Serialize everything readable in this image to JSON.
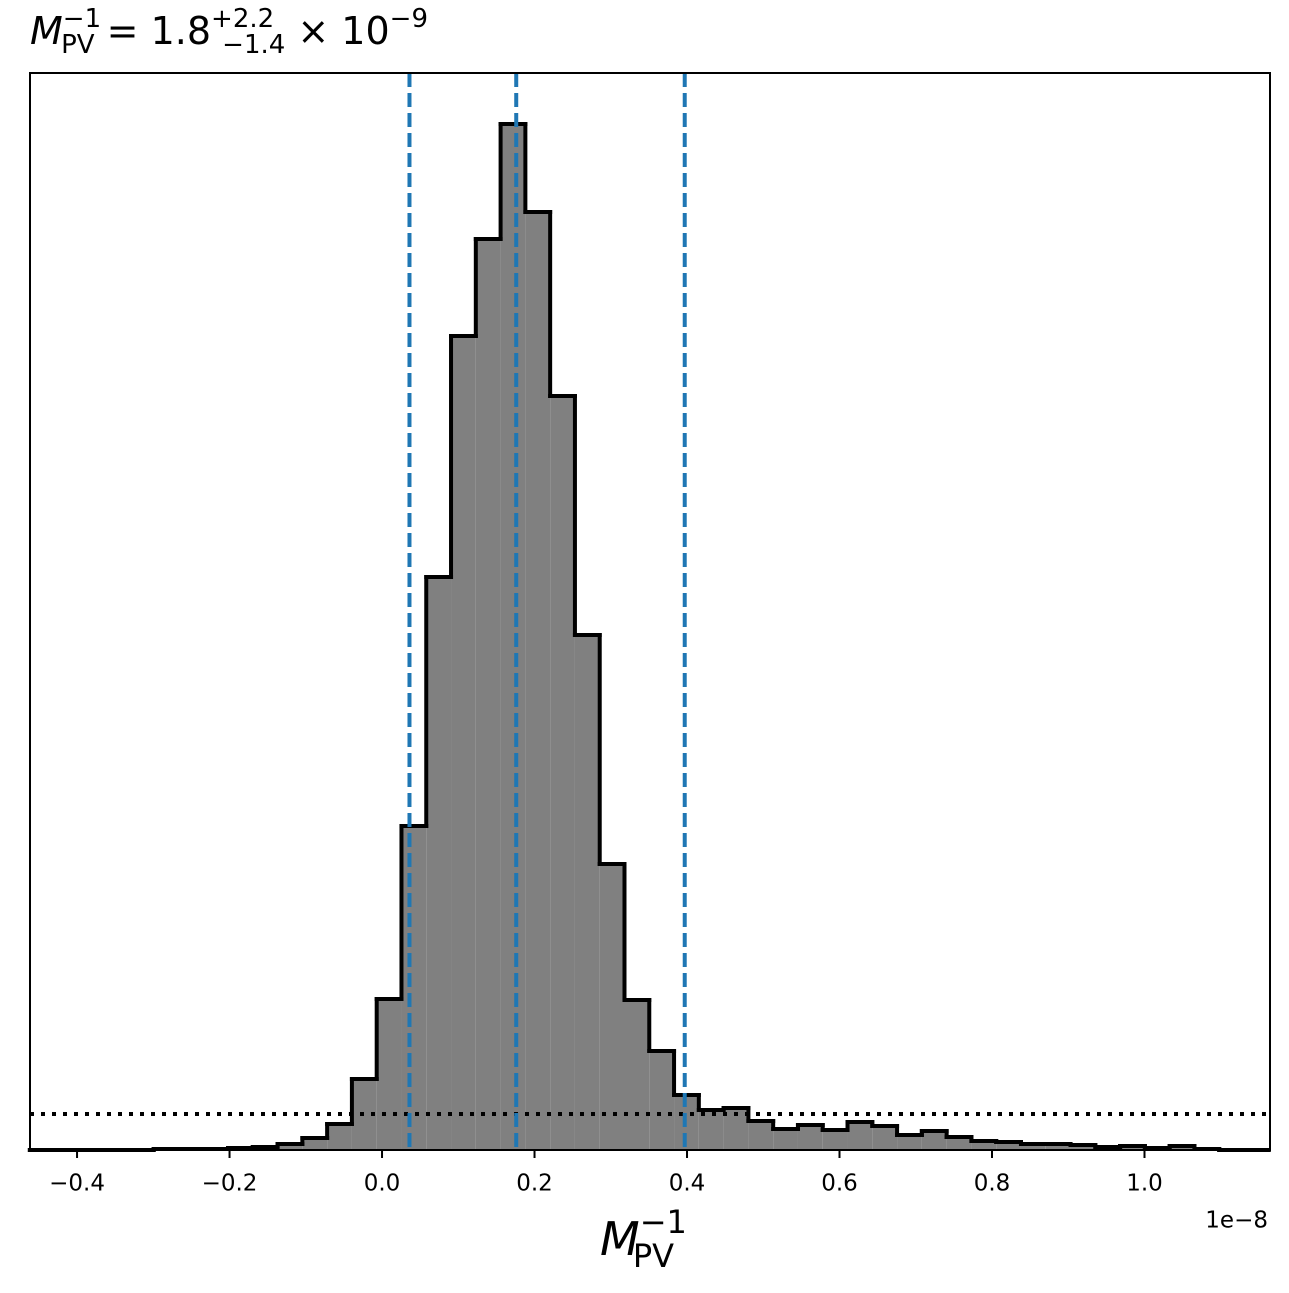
{
  "chart_data": {
    "type": "histogram",
    "title": {
      "symbol": "M",
      "sub": "PV",
      "sup": "−1",
      "eq": " = 1.8",
      "plus": "+2.2",
      "minus": "−1.4",
      "times": " × 10",
      "exp": "−9"
    },
    "xlabel": {
      "symbol": "M",
      "sub": "PV",
      "sup": "−1"
    },
    "x_offset_label": "1e−8",
    "bins": [
      -0.462,
      -0.4295,
      -0.397,
      -0.3645,
      -0.332,
      -0.2995,
      -0.267,
      -0.2345,
      -0.202,
      -0.1695,
      -0.137,
      -0.1045,
      -0.072,
      -0.0395,
      -0.007,
      0.0255,
      0.058,
      0.0905,
      0.123,
      0.1555,
      0.188,
      0.2205,
      0.253,
      0.2855,
      0.318,
      0.3505,
      0.383,
      0.4155,
      0.448,
      0.4805,
      0.513,
      0.5455,
      0.578,
      0.6105,
      0.643,
      0.6755,
      0.708,
      0.7405,
      0.773,
      0.8055,
      0.838,
      0.8705,
      0.903,
      0.9355,
      0.968,
      1.0005,
      1.033,
      1.0655,
      1.098,
      1.1305,
      1.163
    ],
    "values": [
      0,
      0,
      0,
      0,
      0,
      1,
      1,
      1,
      2,
      3,
      6,
      12,
      26,
      71,
      151,
      324,
      573,
      814,
      911,
      1026,
      938,
      754,
      515,
      286,
      150,
      99,
      55,
      40,
      42,
      29,
      21,
      25,
      20,
      28,
      24,
      15,
      19,
      13,
      9,
      8,
      6,
      6,
      5,
      3,
      4,
      2,
      4,
      1,
      0,
      0
    ],
    "color": "#808080",
    "edge_color": "#000000",
    "quantile_lines": [
      0.036,
      0.176,
      0.397
    ],
    "quantile_color": "#1f77b4",
    "reference_line": 36,
    "xlim": [
      -0.4617,
      1.1646
    ],
    "ylim": [
      0,
      1077
    ],
    "xticks": [
      {
        "value": -0.4,
        "label": "−0.4"
      },
      {
        "value": -0.2,
        "label": "−0.2"
      },
      {
        "value": 0,
        "label": "0.0"
      },
      0.2,
      0.4,
      0.6,
      0.8,
      {
        "value": 1,
        "label": "1.0"
      }
    ]
  }
}
